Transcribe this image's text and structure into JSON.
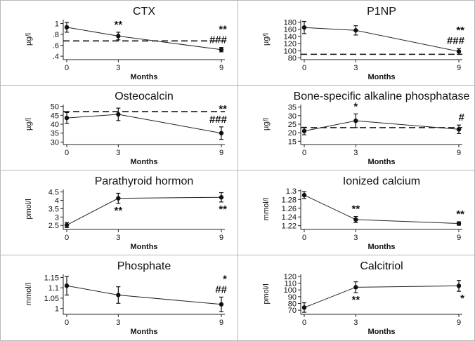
{
  "chart_data": [
    {
      "type": "line",
      "title": "CTX",
      "xlabel": "Months",
      "ylabel": "µg/l",
      "x": [
        0,
        3,
        9
      ],
      "values": [
        0.93,
        0.77,
        0.52
      ],
      "error": [
        0.09,
        0.07,
        0.04
      ],
      "ylim": [
        0.35,
        1.07
      ],
      "yticks": [
        0.4,
        0.6,
        0.8,
        1.0
      ],
      "ytick_labels": [
        ".4",
        ".6",
        ".8",
        "1"
      ],
      "reference_line": 0.68,
      "annotations": [
        {
          "x": 3,
          "text": "**",
          "position": "above"
        },
        {
          "x": 9,
          "text": "**\n###",
          "position": "above"
        }
      ]
    },
    {
      "type": "line",
      "title": "P1NP",
      "xlabel": "Months",
      "ylabel": "µg/l",
      "x": [
        0,
        3,
        9
      ],
      "values": [
        165,
        157,
        98
      ],
      "error": [
        17,
        13,
        8
      ],
      "ylim": [
        77,
        187
      ],
      "yticks": [
        80,
        100,
        120,
        140,
        160,
        180
      ],
      "ytick_labels": [
        "80",
        "100",
        "120",
        "140",
        "160",
        "180"
      ],
      "reference_line": 90,
      "annotations": [
        {
          "x": 9,
          "text": "**\n###",
          "position": "above"
        }
      ]
    },
    {
      "type": "line",
      "title": "Osteocalcin",
      "xlabel": "Months",
      "ylabel": "µg/l",
      "x": [
        0,
        3,
        9
      ],
      "values": [
        43.5,
        45.5,
        35
      ],
      "error": [
        3,
        3.5,
        3.5
      ],
      "ylim": [
        29,
        51
      ],
      "yticks": [
        30,
        35,
        40,
        45,
        50
      ],
      "ytick_labels": [
        "30",
        "35",
        "40",
        "45",
        "50"
      ],
      "reference_line": 47,
      "annotations": [
        {
          "x": 9,
          "text": "**\n###",
          "position": "above"
        }
      ]
    },
    {
      "type": "line",
      "title": "Bone-specific alkaline phosphatase",
      "xlabel": "Months",
      "ylabel": "µg/l",
      "x": [
        0,
        3,
        9
      ],
      "values": [
        21,
        27,
        22
      ],
      "error": [
        2.2,
        4,
        2.5
      ],
      "ylim": [
        13.5,
        36.5
      ],
      "yticks": [
        15,
        20,
        25,
        30,
        35
      ],
      "ytick_labels": [
        "15",
        "20",
        "25",
        "30",
        "35"
      ],
      "reference_line": 23,
      "annotations": [
        {
          "x": 3,
          "text": "*",
          "position": "above"
        },
        {
          "x": 9,
          "text": "#",
          "position": "above"
        }
      ]
    },
    {
      "type": "line",
      "title": "Parathyroid hormon",
      "xlabel": "Months",
      "ylabel": "pmol/l",
      "x": [
        0,
        3,
        9
      ],
      "values": [
        2.52,
        4.12,
        4.18
      ],
      "error": [
        0.15,
        0.3,
        0.28
      ],
      "ylim": [
        2.3,
        4.65
      ],
      "yticks": [
        2.5,
        3,
        3.5,
        4,
        4.5
      ],
      "ytick_labels": [
        "2.5",
        "3",
        "3.5",
        "4",
        "4.5"
      ],
      "annotations": [
        {
          "x": 3,
          "text": "**",
          "position": "below"
        },
        {
          "x": 9,
          "text": "**",
          "position": "below"
        }
      ]
    },
    {
      "type": "line",
      "title": "Ionized calcium",
      "xlabel": "Months",
      "ylabel": "mmol/l",
      "x": [
        0,
        3,
        9
      ],
      "values": [
        1.29,
        1.234,
        1.225
      ],
      "error": [
        0.008,
        0.007,
        0.004
      ],
      "ylim": [
        1.213,
        1.303
      ],
      "yticks": [
        1.22,
        1.24,
        1.26,
        1.28,
        1.3
      ],
      "ytick_labels": [
        "1.22",
        "1.24",
        "1.26",
        "1.28",
        "1.3"
      ],
      "annotations": [
        {
          "x": 3,
          "text": "**",
          "position": "above"
        },
        {
          "x": 9,
          "text": "**",
          "position": "above"
        }
      ]
    },
    {
      "type": "line",
      "title": "Phosphate",
      "xlabel": "Months",
      "ylabel": "mmol/l",
      "x": [
        0,
        3,
        9
      ],
      "values": [
        1.11,
        1.065,
        1.02
      ],
      "error": [
        0.045,
        0.04,
        0.035
      ],
      "ylim": [
        0.975,
        1.165
      ],
      "yticks": [
        1.0,
        1.05,
        1.1,
        1.15
      ],
      "ytick_labels": [
        "1",
        "1.05",
        "1.1",
        "1.15"
      ],
      "annotations": [
        {
          "x": 9,
          "text": "*\n##",
          "position": "above"
        }
      ]
    },
    {
      "type": "line",
      "title": "Calcitriol",
      "xlabel": "Months",
      "ylabel": "pmol/l",
      "x": [
        0,
        3,
        9
      ],
      "values": [
        74,
        104,
        106
      ],
      "error": [
        7,
        8,
        8
      ],
      "ylim": [
        65,
        123
      ],
      "yticks": [
        70,
        80,
        90,
        100,
        110,
        120
      ],
      "ytick_labels": [
        "70",
        "80",
        "90",
        "100",
        "110",
        "120"
      ],
      "annotations": [
        {
          "x": 3,
          "text": "**",
          "position": "below"
        },
        {
          "x": 9,
          "text": "*",
          "position": "below"
        }
      ]
    }
  ]
}
